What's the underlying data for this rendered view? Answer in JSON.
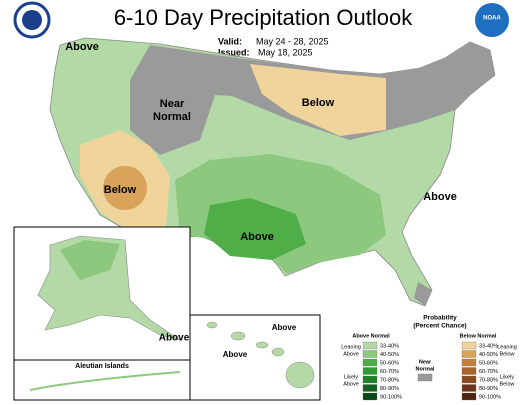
{
  "header": {
    "title": "6-10 Day Precipitation Outlook",
    "valid_label": "Valid:",
    "valid": "May 24 - 28, 2025",
    "issued_label": "Issued:",
    "issued": "May 18, 2025",
    "logo_text": "NOAA"
  },
  "map_labels": {
    "northwest": "Above",
    "near_normal_1": "Near",
    "near_normal_2": "Normal",
    "great_lakes": "Below",
    "southwest": "Below",
    "southern_plains": "Above",
    "east_coast": "Above"
  },
  "insets": {
    "alaska": "Above",
    "aleutian": "Aleutian Islands",
    "hawaii": [
      "Above",
      "Above"
    ]
  },
  "legend": {
    "title": [
      "Probability",
      "(Percent Chance)"
    ],
    "above": {
      "heading": "Above Normal",
      "leaning": [
        "Leaning",
        "Above"
      ],
      "likely": [
        "Likely",
        "Above"
      ],
      "levels": [
        "33-40%",
        "40-50%",
        "50-60%",
        "60-70%",
        "70-80%",
        "80-90%",
        "90-100%"
      ],
      "colors": [
        "#b3d9a6",
        "#8cc97e",
        "#4fae48",
        "#2f9a34",
        "#1f7f2a",
        "#14621f",
        "#0a4514"
      ]
    },
    "near": {
      "heading": [
        "Near",
        "Normal"
      ],
      "color": "#9a9a9a"
    },
    "below": {
      "heading": "Below Normal",
      "leaning": [
        "Leaning",
        "Below"
      ],
      "likely": [
        "Likely",
        "Below"
      ],
      "levels": [
        "33-40%",
        "40-50%",
        "50-60%",
        "60-70%",
        "70-80%",
        "80-90%",
        "90-100%"
      ],
      "colors": [
        "#f0d49c",
        "#d9a35a",
        "#c0823a",
        "#a8642a",
        "#8a4b20",
        "#6e3618",
        "#4c2410"
      ]
    }
  }
}
